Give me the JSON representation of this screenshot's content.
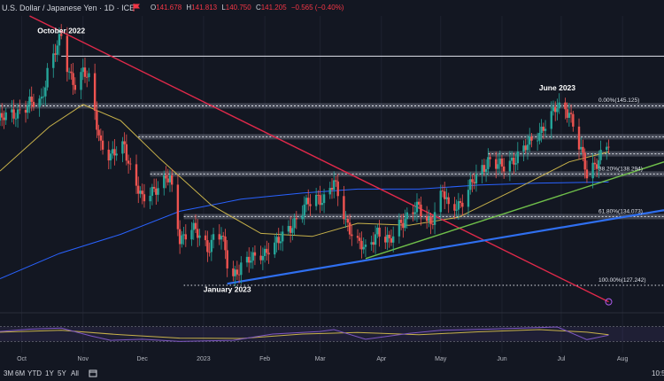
{
  "header": {
    "title": "U.S. Dollar / Japanese Yen · 1D · ICE",
    "ohlc": [
      {
        "key": "O",
        "value": "141.678"
      },
      {
        "key": "H",
        "value": "141.813"
      },
      {
        "key": "L",
        "value": "140.750"
      },
      {
        "key": "C",
        "value": "141.205"
      },
      {
        "key": "",
        "value": "−0.565 (−0.40%)"
      }
    ]
  },
  "toolbar": {
    "ranges": [
      "3M",
      "6M",
      "YTD",
      "1Y",
      "5Y",
      "All"
    ],
    "clock": "10:5"
  },
  "colors": {
    "background": "#131722",
    "up": "#26a69a",
    "down": "#ef5350",
    "ma_short": "#c8b24a",
    "ma_long": "#2962ff",
    "trend_down": "#e0294a",
    "trend_up": "#2f6ff0",
    "trend_green": "#6fbf4a"
  },
  "chart_data": {
    "type": "candlestick",
    "instrument": "USD/JPY",
    "timeframe": "1D",
    "x_range": [
      "2022-09-20",
      "2023-08-22"
    ],
    "y_range": [
      124.6,
      154.0
    ],
    "month_labels": [
      {
        "label": "Oct",
        "date": "2022-10-01"
      },
      {
        "label": "Nov",
        "date": "2022-11-01"
      },
      {
        "label": "Dec",
        "date": "2022-12-01"
      },
      {
        "label": "2023",
        "date": "2023-01-01"
      },
      {
        "label": "Feb",
        "date": "2023-02-01"
      },
      {
        "label": "Mar",
        "date": "2023-03-01"
      },
      {
        "label": "Apr",
        "date": "2023-04-01"
      },
      {
        "label": "May",
        "date": "2023-05-01"
      },
      {
        "label": "Jun",
        "date": "2023-06-01"
      },
      {
        "label": "Jul",
        "date": "2023-07-01"
      },
      {
        "label": "Aug",
        "date": "2023-08-01"
      }
    ],
    "close_path": [
      [
        "2022-09-20",
        143.6
      ],
      [
        "2022-09-27",
        144.4
      ],
      [
        "2022-10-04",
        145.0
      ],
      [
        "2022-10-11",
        145.7
      ],
      [
        "2022-10-14",
        148.6
      ],
      [
        "2022-10-21",
        151.8
      ],
      [
        "2022-10-24",
        149.0
      ],
      [
        "2022-10-28",
        147.3
      ],
      [
        "2022-11-01",
        148.3
      ],
      [
        "2022-11-04",
        147.6
      ],
      [
        "2022-11-10",
        141.4
      ],
      [
        "2022-11-15",
        139.8
      ],
      [
        "2022-11-22",
        141.3
      ],
      [
        "2022-11-25",
        138.9
      ],
      [
        "2022-12-01",
        135.5
      ],
      [
        "2022-12-06",
        136.8
      ],
      [
        "2022-12-12",
        137.6
      ],
      [
        "2022-12-15",
        137.7
      ],
      [
        "2022-12-20",
        132.0
      ],
      [
        "2022-12-26",
        132.9
      ],
      [
        "2023-01-03",
        131.0
      ],
      [
        "2023-01-06",
        132.1
      ],
      [
        "2023-01-10",
        132.2
      ],
      [
        "2023-01-13",
        129.3
      ],
      [
        "2023-01-16",
        128.2
      ],
      [
        "2023-01-20",
        129.4
      ],
      [
        "2023-01-27",
        129.8
      ],
      [
        "2023-02-03",
        131.0
      ],
      [
        "2023-02-08",
        131.4
      ],
      [
        "2023-02-14",
        133.2
      ],
      [
        "2023-02-21",
        134.9
      ],
      [
        "2023-02-28",
        136.1
      ],
      [
        "2023-03-03",
        135.9
      ],
      [
        "2023-03-08",
        137.3
      ],
      [
        "2023-03-14",
        133.8
      ],
      [
        "2023-03-20",
        131.4
      ],
      [
        "2023-03-24",
        130.6
      ],
      [
        "2023-03-30",
        132.8
      ],
      [
        "2023-04-05",
        131.3
      ],
      [
        "2023-04-11",
        133.7
      ],
      [
        "2023-04-19",
        134.8
      ],
      [
        "2023-04-26",
        133.6
      ],
      [
        "2023-05-02",
        136.5
      ],
      [
        "2023-05-05",
        134.8
      ],
      [
        "2023-05-12",
        135.7
      ],
      [
        "2023-05-19",
        137.9
      ],
      [
        "2023-05-25",
        139.8
      ],
      [
        "2023-06-01",
        138.8
      ],
      [
        "2023-06-07",
        139.9
      ],
      [
        "2023-06-15",
        141.2
      ],
      [
        "2023-06-22",
        143.1
      ],
      [
        "2023-06-29",
        144.8
      ],
      [
        "2023-07-05",
        144.7
      ],
      [
        "2023-07-11",
        140.4
      ],
      [
        "2023-07-14",
        138.1
      ],
      [
        "2023-07-20",
        140.0
      ],
      [
        "2023-07-25",
        141.2
      ]
    ],
    "ma_short": [
      [
        "2022-09-20",
        138.6
      ],
      [
        "2022-10-15",
        143.0
      ],
      [
        "2022-11-01",
        145.2
      ],
      [
        "2022-11-20",
        143.6
      ],
      [
        "2022-12-10",
        139.8
      ],
      [
        "2023-01-05",
        135.2
      ],
      [
        "2023-01-30",
        132.4
      ],
      [
        "2023-02-25",
        132.1
      ],
      [
        "2023-03-20",
        133.4
      ],
      [
        "2023-04-15",
        133.2
      ],
      [
        "2023-05-10",
        134.0
      ],
      [
        "2023-06-05",
        136.5
      ],
      [
        "2023-07-05",
        139.5
      ],
      [
        "2023-07-25",
        140.5
      ]
    ],
    "ma_long": [
      [
        "2022-09-20",
        127.9
      ],
      [
        "2022-10-20",
        130.4
      ],
      [
        "2022-11-20",
        132.3
      ],
      [
        "2022-12-20",
        134.6
      ],
      [
        "2023-01-20",
        135.8
      ],
      [
        "2023-02-20",
        136.4
      ],
      [
        "2023-03-20",
        136.8
      ],
      [
        "2023-04-20",
        136.8
      ],
      [
        "2023-05-20",
        137.2
      ],
      [
        "2023-06-20",
        137.4
      ],
      [
        "2023-07-25",
        137.5
      ]
    ],
    "trendlines": [
      {
        "name": "descending",
        "from": [
          "2022-10-05",
          154.0
        ],
        "to": [
          "2023-07-25",
          125.6
        ],
        "color": "#e0294a"
      },
      {
        "name": "ascending",
        "from": [
          "2023-01-13",
          127.4
        ],
        "to": [
          "2023-08-22",
          134.7
        ],
        "color": "#2f6ff0"
      },
      {
        "name": "ascending-2",
        "from": [
          "2023-03-24",
          129.9
        ],
        "to": [
          "2023-08-22",
          139.5
        ],
        "color": "#6fbf4a"
      }
    ],
    "horizontal_levels": [
      {
        "value": 150.0,
        "from": "2022-10-21",
        "style": "solid"
      },
      {
        "value": 145.07,
        "from": "2022-09-20",
        "style": "band"
      },
      {
        "value": 142.0,
        "from": "2022-11-29",
        "style": "band"
      },
      {
        "value": 140.3,
        "from": "2023-05-25",
        "style": "band"
      },
      {
        "value": 138.3,
        "from": "2022-12-05",
        "style": "band"
      },
      {
        "value": 134.07,
        "from": "2022-12-22",
        "style": "band"
      },
      {
        "value": 127.24,
        "from": "2022-12-22",
        "style": "dotted"
      }
    ],
    "fibonacci": [
      {
        "label": "0.00%(145.125)",
        "value": 145.125
      },
      {
        "label": "38.20%(138.294)",
        "value": 138.294
      },
      {
        "label": "61.80%(134.073)",
        "value": 134.073
      },
      {
        "label": "100.00%(127.242)",
        "value": 127.242
      }
    ],
    "annotations": [
      {
        "text": "October 2022",
        "date": "2022-10-21",
        "value": 152.3
      },
      {
        "text": "June 2023",
        "date": "2023-06-29",
        "value": 146.6
      },
      {
        "text": "January 2023",
        "date": "2023-01-13",
        "value": 126.6
      }
    ],
    "rsi": [
      [
        "2022-09-20",
        57
      ],
      [
        "2022-10-05",
        63
      ],
      [
        "2022-10-21",
        66
      ],
      [
        "2022-11-05",
        45
      ],
      [
        "2022-11-15",
        33
      ],
      [
        "2022-12-01",
        36
      ],
      [
        "2022-12-20",
        30
      ],
      [
        "2023-01-16",
        33
      ],
      [
        "2023-02-05",
        50
      ],
      [
        "2023-03-01",
        57
      ],
      [
        "2023-03-08",
        62
      ],
      [
        "2023-03-24",
        36
      ],
      [
        "2023-04-15",
        52
      ],
      [
        "2023-05-01",
        60
      ],
      [
        "2023-05-25",
        63
      ],
      [
        "2023-06-29",
        69
      ],
      [
        "2023-07-14",
        35
      ],
      [
        "2023-07-25",
        47
      ]
    ],
    "rsi_ma": [
      [
        "2022-09-20",
        55
      ],
      [
        "2022-10-21",
        60
      ],
      [
        "2022-11-20",
        48
      ],
      [
        "2022-12-20",
        39
      ],
      [
        "2023-01-20",
        38
      ],
      [
        "2023-02-20",
        50
      ],
      [
        "2023-03-20",
        54
      ],
      [
        "2023-04-20",
        48
      ],
      [
        "2023-05-20",
        56
      ],
      [
        "2023-06-20",
        62
      ],
      [
        "2023-07-14",
        55
      ],
      [
        "2023-07-25",
        48
      ]
    ],
    "rsi_range": [
      0,
      100
    ],
    "rsi_bands": [
      30,
      70
    ]
  }
}
